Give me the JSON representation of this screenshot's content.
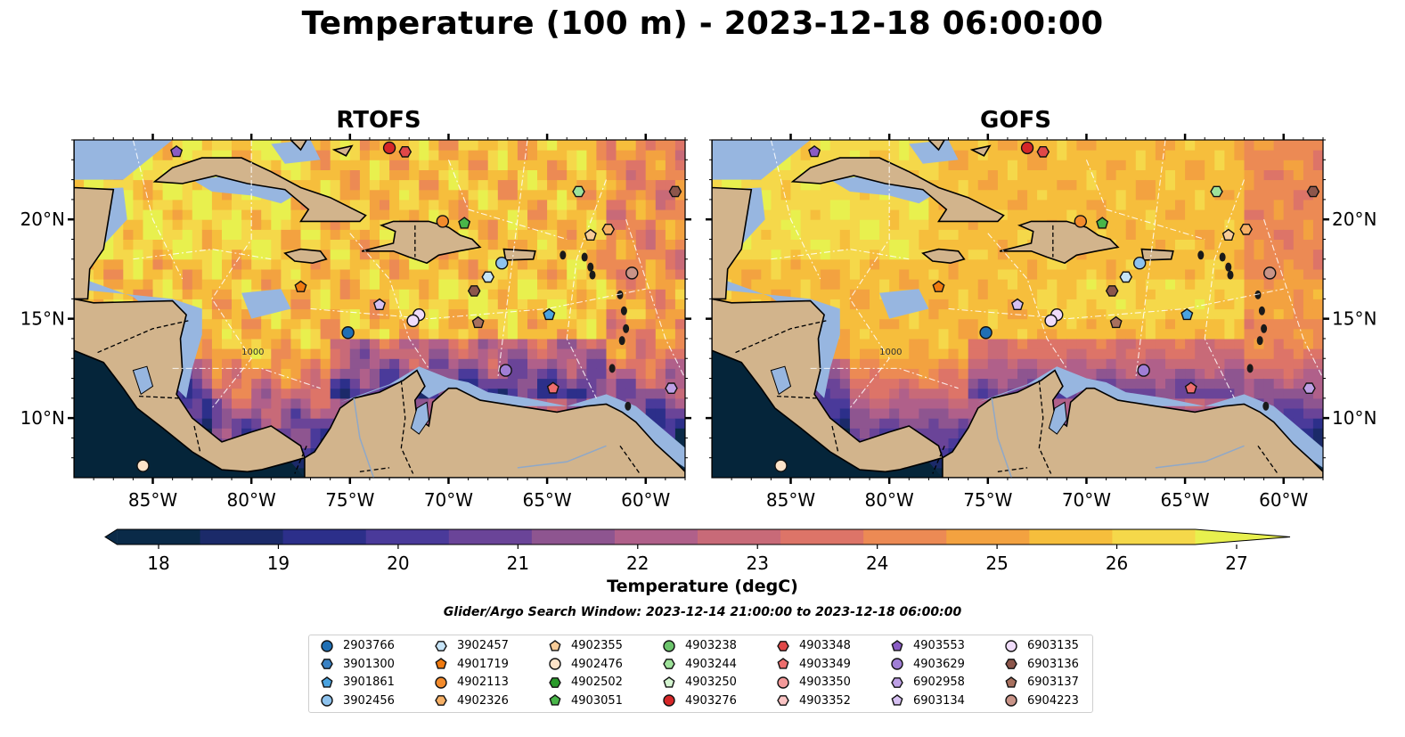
{
  "title": "Temperature (100 m) - 2023-12-18 06:00:00",
  "panels": [
    {
      "title": "RTOFS"
    },
    {
      "title": "GOFS"
    }
  ],
  "axes": {
    "x_ticks": [
      "85°W",
      "80°W",
      "75°W",
      "70°W",
      "65°W",
      "60°W"
    ],
    "y_ticks_left": [
      "20°N",
      "15°N",
      "10°N"
    ],
    "y_ticks_right": [
      "20°N",
      "15°N",
      "10°N"
    ],
    "contour_label": "1000"
  },
  "colorbar": {
    "label": "Temperature (degC)",
    "ticks": [
      "18",
      "19",
      "20",
      "21",
      "22",
      "23",
      "24",
      "25",
      "26",
      "27"
    ],
    "colors": [
      "#0a2a48",
      "#1b2a69",
      "#2c2f8a",
      "#4a3a9a",
      "#6a4498",
      "#8e5590",
      "#b0608a",
      "#c86a78",
      "#dd7468",
      "#ec8a54",
      "#f3a240",
      "#f6be3c",
      "#f5d84a",
      "#e8f04e"
    ]
  },
  "search_window": "Glider/Argo Search Window: 2023-12-14 21:00:00 to 2023-12-18 06:00:00",
  "colors": {
    "land": "#d2b48c",
    "shelf": "#97b6e0",
    "pacific": "#05253a"
  },
  "legend": [
    {
      "id": "2903766",
      "shape": "circle",
      "color": "#1f6fb4"
    },
    {
      "id": "3901300",
      "shape": "hexagon",
      "color": "#3a82c4"
    },
    {
      "id": "3901861",
      "shape": "pentagon",
      "color": "#4aa3e0"
    },
    {
      "id": "3902456",
      "shape": "circle",
      "color": "#8ec3ee"
    },
    {
      "id": "3902457",
      "shape": "hexagon",
      "color": "#c6e4f7"
    },
    {
      "id": "4901719",
      "shape": "pentagon",
      "color": "#f07a10"
    },
    {
      "id": "4902113",
      "shape": "circle",
      "color": "#f38b2c"
    },
    {
      "id": "4902326",
      "shape": "hexagon",
      "color": "#f6b066"
    },
    {
      "id": "4902355",
      "shape": "pentagon",
      "color": "#f8cc98"
    },
    {
      "id": "4902476",
      "shape": "circle",
      "color": "#fde3c8"
    },
    {
      "id": "4902502",
      "shape": "hexagon",
      "color": "#2a9a2a"
    },
    {
      "id": "4903051",
      "shape": "pentagon",
      "color": "#49b649"
    },
    {
      "id": "4903238",
      "shape": "circle",
      "color": "#6cc46c"
    },
    {
      "id": "4903244",
      "shape": "hexagon",
      "color": "#9ee29a"
    },
    {
      "id": "4903250",
      "shape": "pentagon",
      "color": "#d4f5d0"
    },
    {
      "id": "4903276",
      "shape": "circle",
      "color": "#d62728"
    },
    {
      "id": "4903348",
      "shape": "hexagon",
      "color": "#e04848"
    },
    {
      "id": "4903349",
      "shape": "pentagon",
      "color": "#ee6e6e"
    },
    {
      "id": "4903350",
      "shape": "circle",
      "color": "#f49a9a"
    },
    {
      "id": "4903352",
      "shape": "hexagon",
      "color": "#fac4c4"
    },
    {
      "id": "4903553",
      "shape": "pentagon",
      "color": "#8a5cc4"
    },
    {
      "id": "4903629",
      "shape": "circle",
      "color": "#a07ed6"
    },
    {
      "id": "6902958",
      "shape": "hexagon",
      "color": "#bea0e6"
    },
    {
      "id": "6903134",
      "shape": "pentagon",
      "color": "#d6c0f2"
    },
    {
      "id": "6903135",
      "shape": "circle",
      "color": "#f0dcfa"
    },
    {
      "id": "6903136",
      "shape": "hexagon",
      "color": "#8c564b"
    },
    {
      "id": "6903137",
      "shape": "pentagon",
      "color": "#a8705e"
    },
    {
      "id": "6904223",
      "shape": "circle",
      "color": "#c99488"
    }
  ],
  "floats_on_map": [
    {
      "id": "4903553",
      "lon": -83.8,
      "lat": 23.4
    },
    {
      "id": "4903276",
      "lon": -73.0,
      "lat": 23.6
    },
    {
      "id": "4903348",
      "lon": -72.2,
      "lat": 23.4
    },
    {
      "id": "4903244",
      "lon": -63.4,
      "lat": 21.4
    },
    {
      "id": "6903136",
      "lon": -58.5,
      "lat": 21.4
    },
    {
      "id": "4902113",
      "lon": -70.3,
      "lat": 19.9
    },
    {
      "id": "4903051",
      "lon": -69.2,
      "lat": 19.8
    },
    {
      "id": "4902326",
      "lon": -61.9,
      "lat": 19.5
    },
    {
      "id": "4902355",
      "lon": -62.8,
      "lat": 19.2
    },
    {
      "id": "3902456",
      "lon": -67.3,
      "lat": 17.8
    },
    {
      "id": "3902457",
      "lon": -68.0,
      "lat": 17.1
    },
    {
      "id": "6904223",
      "lon": -60.7,
      "lat": 17.3
    },
    {
      "id": "4901719",
      "lon": -77.5,
      "lat": 16.6
    },
    {
      "id": "6903136",
      "lon": -68.7,
      "lat": 16.4
    },
    {
      "id": "6903134",
      "lon": -73.5,
      "lat": 15.7
    },
    {
      "id": "6903135",
      "lon": -71.5,
      "lat": 15.2
    },
    {
      "id": "6903135",
      "lon": -71.8,
      "lat": 14.9
    },
    {
      "id": "3901861",
      "lon": -64.9,
      "lat": 15.2
    },
    {
      "id": "6903137",
      "lon": -68.5,
      "lat": 14.8
    },
    {
      "id": "2903766",
      "lon": -75.1,
      "lat": 14.3
    },
    {
      "id": "4903629",
      "lon": -67.1,
      "lat": 12.4
    },
    {
      "id": "4903349",
      "lon": -64.7,
      "lat": 11.5
    },
    {
      "id": "6902958",
      "lon": -58.7,
      "lat": 11.5
    },
    {
      "id": "4902476",
      "lon": -85.5,
      "lat": 7.6
    }
  ]
}
